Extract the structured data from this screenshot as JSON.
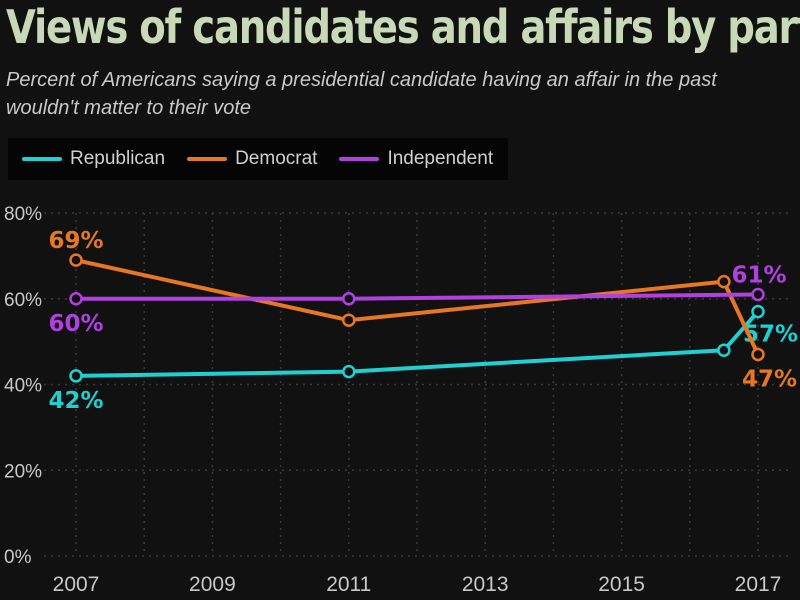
{
  "title": "Views of candidates and affairs by party",
  "subtitle": "Percent of Americans saying a presidential candidate having an affair in the past wouldn't matter to their vote",
  "colors": {
    "republican": "#20d0d0",
    "democrat": "#e87722",
    "independent": "#b040e0",
    "background": "#111111",
    "grid": "#3a3a3a",
    "title": "#c8d9b8"
  },
  "chart_data": {
    "type": "line",
    "title": "Views of candidates and affairs by party",
    "subtitle": "Percent of Americans saying a presidential candidate having an affair in the past wouldn't matter to their vote",
    "xlabel": "",
    "ylabel": "",
    "xlim": [
      2007,
      2017
    ],
    "ylim": [
      0,
      80
    ],
    "y_ticks": [
      0,
      20,
      40,
      60,
      80
    ],
    "y_tick_labels": [
      "0%",
      "20%",
      "40%",
      "60%",
      "80%"
    ],
    "x_ticks": [
      2007,
      2009,
      2011,
      2013,
      2015,
      2017
    ],
    "x_tick_labels": [
      "2007",
      "2009",
      "2011",
      "2013",
      "2015",
      "2017"
    ],
    "grid": true,
    "legend": "top-left",
    "series": [
      {
        "name": "Republican",
        "color": "#20d0d0",
        "x": [
          2007,
          2011,
          2016.5,
          2017
        ],
        "y": [
          42,
          43,
          48,
          57
        ],
        "labels": [
          {
            "index": 0,
            "text": "42%",
            "position": "below"
          },
          {
            "index": 3,
            "text": "57%",
            "position": "right-below"
          }
        ]
      },
      {
        "name": "Democrat",
        "color": "#e87722",
        "x": [
          2007,
          2011,
          2016.5,
          2017
        ],
        "y": [
          69,
          55,
          64,
          47
        ],
        "labels": [
          {
            "index": 0,
            "text": "69%",
            "position": "above"
          },
          {
            "index": 3,
            "text": "47%",
            "position": "below"
          }
        ]
      },
      {
        "name": "Independent",
        "color": "#b040e0",
        "x": [
          2007,
          2011,
          2017
        ],
        "y": [
          60,
          60,
          61
        ],
        "labels": [
          {
            "index": 0,
            "text": "60%",
            "position": "below"
          },
          {
            "index": 2,
            "text": "61%",
            "position": "above"
          }
        ]
      }
    ]
  }
}
